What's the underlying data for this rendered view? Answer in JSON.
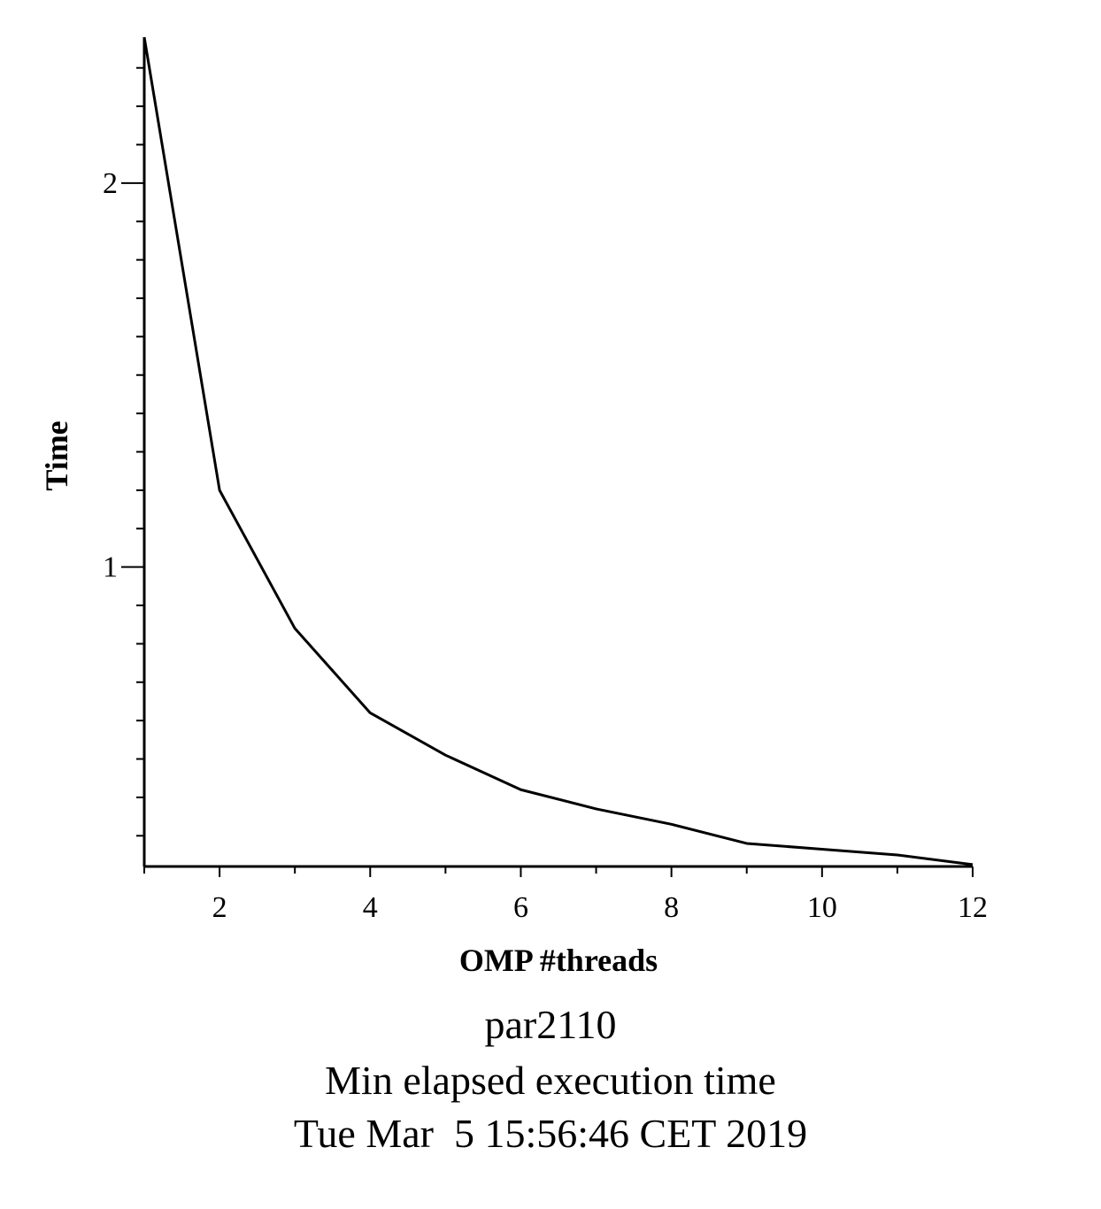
{
  "chart_data": {
    "type": "line",
    "xlabel": "OMP #threads",
    "ylabel": "Time",
    "xlim": [
      1,
      12
    ],
    "ylim": [
      0.22,
      2.38
    ],
    "x_ticks": [
      2,
      4,
      6,
      8,
      10,
      12
    ],
    "y_ticks": [
      1,
      2
    ],
    "grid": false,
    "series": [
      {
        "x": [
          1,
          2,
          3,
          4,
          5,
          6,
          7,
          8,
          9,
          10,
          11,
          12
        ],
        "values": [
          2.38,
          1.2,
          0.84,
          0.62,
          0.51,
          0.42,
          0.37,
          0.33,
          0.28,
          0.265,
          0.25,
          0.225
        ]
      }
    ],
    "color": "#000000"
  },
  "captions": {
    "line1": "par2110",
    "line2": "Min elapsed execution time",
    "line3": "Tue Mar  5 15:56:46 CET 2019"
  }
}
